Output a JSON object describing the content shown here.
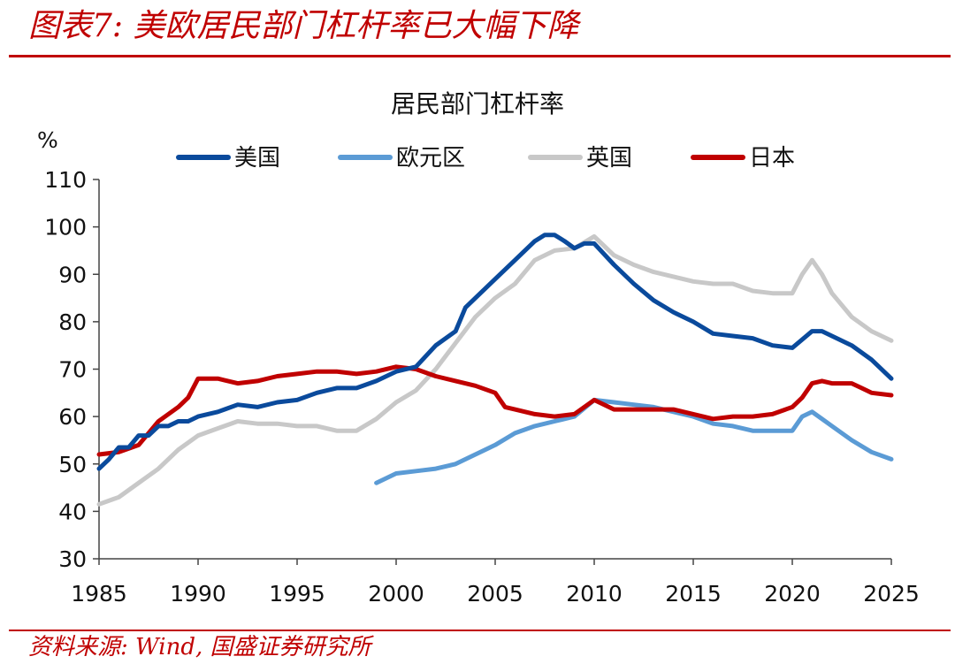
{
  "figure": {
    "title": "图表7:  美欧居民部门杠杆率已大幅下降",
    "source": "资料来源:  Wind,  国盛证券研究所",
    "accent_color": "#c00000"
  },
  "chart_data": {
    "type": "line",
    "title": "居民部门杠杆率",
    "ylabel": "%",
    "xlim": [
      1985,
      2025
    ],
    "ylim": [
      30,
      110
    ],
    "xticks": [
      1985,
      1990,
      1995,
      2000,
      2005,
      2010,
      2015,
      2020,
      2025
    ],
    "yticks": [
      30,
      40,
      50,
      60,
      70,
      80,
      90,
      100,
      110
    ],
    "grid": false,
    "legend": "top",
    "series": [
      {
        "name": "美国",
        "color": "#0a4a9c",
        "points": [
          [
            1985,
            49
          ],
          [
            1985.5,
            51
          ],
          [
            1986,
            53.5
          ],
          [
            1986.5,
            53.5
          ],
          [
            1987,
            56
          ],
          [
            1987.5,
            56
          ],
          [
            1988,
            58
          ],
          [
            1988.5,
            58
          ],
          [
            1989,
            59
          ],
          [
            1989.5,
            59
          ],
          [
            1990,
            60
          ],
          [
            1991,
            61
          ],
          [
            1992,
            62.5
          ],
          [
            1993,
            62
          ],
          [
            1994,
            63
          ],
          [
            1995,
            63.5
          ],
          [
            1996,
            65
          ],
          [
            1997,
            66
          ],
          [
            1998,
            66
          ],
          [
            1999,
            67.5
          ],
          [
            2000,
            69.5
          ],
          [
            2001,
            70.5
          ],
          [
            2002,
            75
          ],
          [
            2003,
            78
          ],
          [
            2003.5,
            83
          ],
          [
            2004,
            85
          ],
          [
            2005,
            89
          ],
          [
            2006,
            93
          ],
          [
            2007,
            97
          ],
          [
            2007.5,
            98.3
          ],
          [
            2008,
            98.3
          ],
          [
            2008.5,
            97
          ],
          [
            2009,
            95.5
          ],
          [
            2009.5,
            96.5
          ],
          [
            2010,
            96.5
          ],
          [
            2011,
            92
          ],
          [
            2012,
            88
          ],
          [
            2013,
            84.5
          ],
          [
            2014,
            82
          ],
          [
            2015,
            80
          ],
          [
            2016,
            77.5
          ],
          [
            2017,
            77
          ],
          [
            2018,
            76.5
          ],
          [
            2019,
            75
          ],
          [
            2020,
            74.5
          ],
          [
            2021,
            78
          ],
          [
            2021.5,
            78
          ],
          [
            2022,
            77
          ],
          [
            2023,
            75
          ],
          [
            2024,
            72
          ],
          [
            2025,
            68
          ]
        ]
      },
      {
        "name": "欧元区",
        "color": "#5b9bd5",
        "points": [
          [
            1999,
            46
          ],
          [
            2000,
            48
          ],
          [
            2001,
            48.5
          ],
          [
            2002,
            49
          ],
          [
            2003,
            50
          ],
          [
            2004,
            52
          ],
          [
            2005,
            54
          ],
          [
            2006,
            56.5
          ],
          [
            2007,
            58
          ],
          [
            2008,
            59
          ],
          [
            2009,
            60
          ],
          [
            2010,
            63.5
          ],
          [
            2011,
            63
          ],
          [
            2012,
            62.5
          ],
          [
            2013,
            62
          ],
          [
            2014,
            61
          ],
          [
            2015,
            60
          ],
          [
            2016,
            58.5
          ],
          [
            2017,
            58
          ],
          [
            2018,
            57
          ],
          [
            2019,
            57
          ],
          [
            2020,
            57
          ],
          [
            2020.5,
            60
          ],
          [
            2021,
            61
          ],
          [
            2021.5,
            59.5
          ],
          [
            2022,
            58
          ],
          [
            2023,
            55
          ],
          [
            2024,
            52.5
          ],
          [
            2025,
            51
          ]
        ]
      },
      {
        "name": "英国",
        "color": "#c8c8c8",
        "points": [
          [
            1985,
            41.5
          ],
          [
            1986,
            43
          ],
          [
            1987,
            46
          ],
          [
            1988,
            49
          ],
          [
            1989,
            53
          ],
          [
            1990,
            56
          ],
          [
            1991,
            57.5
          ],
          [
            1992,
            59
          ],
          [
            1993,
            58.5
          ],
          [
            1994,
            58.5
          ],
          [
            1995,
            58
          ],
          [
            1996,
            58
          ],
          [
            1997,
            57
          ],
          [
            1998,
            57
          ],
          [
            1999,
            59.5
          ],
          [
            2000,
            63
          ],
          [
            2001,
            65.5
          ],
          [
            2002,
            70
          ],
          [
            2003,
            75.5
          ],
          [
            2004,
            81
          ],
          [
            2005,
            85
          ],
          [
            2006,
            88
          ],
          [
            2007,
            93
          ],
          [
            2008,
            95
          ],
          [
            2009,
            95.5
          ],
          [
            2010,
            98
          ],
          [
            2011,
            94
          ],
          [
            2012,
            92
          ],
          [
            2013,
            90.5
          ],
          [
            2014,
            89.5
          ],
          [
            2015,
            88.5
          ],
          [
            2016,
            88
          ],
          [
            2017,
            88
          ],
          [
            2018,
            86.5
          ],
          [
            2019,
            86
          ],
          [
            2020,
            86
          ],
          [
            2020.5,
            90
          ],
          [
            2021,
            93
          ],
          [
            2021.5,
            90
          ],
          [
            2022,
            86
          ],
          [
            2023,
            81
          ],
          [
            2024,
            78
          ],
          [
            2025,
            76
          ]
        ]
      },
      {
        "name": "日本",
        "color": "#c00000",
        "points": [
          [
            1985,
            52
          ],
          [
            1986,
            52.5
          ],
          [
            1987,
            54
          ],
          [
            1988,
            59
          ],
          [
            1989,
            62
          ],
          [
            1989.5,
            64
          ],
          [
            1990,
            68
          ],
          [
            1991,
            68
          ],
          [
            1992,
            67
          ],
          [
            1993,
            67.5
          ],
          [
            1994,
            68.5
          ],
          [
            1995,
            69
          ],
          [
            1996,
            69.5
          ],
          [
            1997,
            69.5
          ],
          [
            1998,
            69
          ],
          [
            1999,
            69.5
          ],
          [
            2000,
            70.5
          ],
          [
            2001,
            70
          ],
          [
            2002,
            68.5
          ],
          [
            2003,
            67.5
          ],
          [
            2004,
            66.5
          ],
          [
            2005,
            65
          ],
          [
            2005.5,
            62
          ],
          [
            2006,
            61.5
          ],
          [
            2007,
            60.5
          ],
          [
            2008,
            60
          ],
          [
            2009,
            60.5
          ],
          [
            2010,
            63.5
          ],
          [
            2011,
            61.5
          ],
          [
            2012,
            61.5
          ],
          [
            2013,
            61.5
          ],
          [
            2014,
            61.5
          ],
          [
            2015,
            60.5
          ],
          [
            2016,
            59.5
          ],
          [
            2017,
            60
          ],
          [
            2018,
            60
          ],
          [
            2019,
            60.5
          ],
          [
            2020,
            62
          ],
          [
            2020.5,
            64
          ],
          [
            2021,
            67
          ],
          [
            2021.5,
            67.5
          ],
          [
            2022,
            67
          ],
          [
            2023,
            67
          ],
          [
            2023.5,
            66
          ],
          [
            2024,
            65
          ],
          [
            2025,
            64.5
          ]
        ]
      }
    ]
  }
}
